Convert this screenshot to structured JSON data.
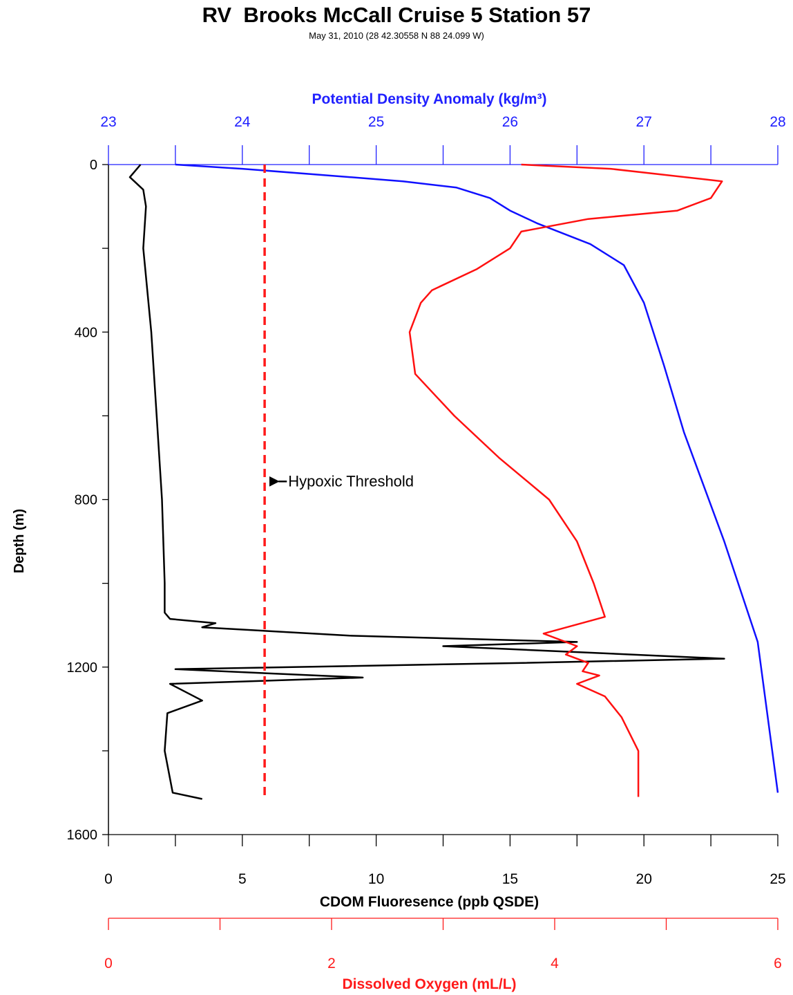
{
  "chart_data": {
    "type": "line",
    "title": "RV  Brooks McCall Cruise 5 Station 57",
    "subtitle": "May 31, 2010 (28 42.30558 N 88 24.099 W)",
    "y_axis": {
      "label": "Depth (m)",
      "range": [
        0,
        1600
      ],
      "inverted": true,
      "ticks": [
        0,
        400,
        800,
        1200,
        1600
      ]
    },
    "x_axes": [
      {
        "id": "density",
        "position": "top",
        "label": "Potential Density Anomaly (kg/m³)",
        "color": "#2020ff",
        "range": [
          23,
          28
        ],
        "ticks": [
          23,
          24,
          25,
          26,
          27,
          28
        ]
      },
      {
        "id": "cdom",
        "position": "bottom",
        "label": "CDOM Fluoresence (ppb QSDE)",
        "color": "#000000",
        "range": [
          0,
          25
        ],
        "ticks": [
          0,
          5,
          10,
          15,
          20,
          25
        ]
      },
      {
        "id": "oxygen",
        "position": "bottom-offset",
        "label": "Dissolved Oxygen (mL/L)",
        "color": "#ff1a1a",
        "range": [
          0,
          6
        ],
        "ticks": [
          0,
          2,
          4,
          6
        ]
      }
    ],
    "series": [
      {
        "axis": "density",
        "color": "#1010ff",
        "x": [
          23.5,
          24.0,
          24.6,
          25.2,
          25.6,
          25.85,
          26.0,
          26.2,
          26.6,
          26.85,
          27.0,
          27.15,
          27.3,
          27.6,
          27.85,
          28.0
        ],
        "y": [
          0,
          10,
          25,
          40,
          55,
          80,
          110,
          140,
          190,
          240,
          330,
          480,
          640,
          900,
          1140,
          1500
        ]
      },
      {
        "axis": "cdom",
        "color": "#000000",
        "x": [
          1.2,
          1.0,
          0.8,
          1.3,
          1.4,
          1.3,
          1.6,
          1.8,
          2.0,
          2.1,
          2.1,
          2.3,
          4.0,
          3.5,
          9.0,
          17.5,
          12.5,
          23.0,
          15.5,
          2.5,
          9.5,
          2.3,
          3.5,
          2.2,
          2.1,
          2.4,
          3.5
        ],
        "y": [
          0,
          15,
          30,
          60,
          100,
          200,
          400,
          600,
          800,
          1000,
          1070,
          1085,
          1095,
          1105,
          1125,
          1140,
          1150,
          1180,
          1190,
          1205,
          1225,
          1240,
          1280,
          1310,
          1400,
          1500,
          1515
        ]
      },
      {
        "axis": "oxygen",
        "color": "#ff1010",
        "x": [
          3.7,
          4.5,
          5.5,
          5.4,
          5.1,
          4.3,
          3.7,
          3.6,
          3.3,
          2.9,
          2.8,
          2.7,
          2.75,
          3.1,
          3.5,
          3.95,
          4.2,
          4.35,
          4.45,
          3.9,
          4.2,
          4.1,
          4.3,
          4.25,
          4.4,
          4.2,
          4.45,
          4.6,
          4.75,
          4.75
        ],
        "y": [
          0,
          10,
          40,
          80,
          110,
          130,
          160,
          200,
          250,
          300,
          330,
          400,
          500,
          600,
          700,
          800,
          900,
          1000,
          1080,
          1120,
          1150,
          1170,
          1190,
          1210,
          1220,
          1240,
          1270,
          1320,
          1400,
          1510
        ]
      },
      {
        "axis": "oxygen",
        "color": "#ff1a1a",
        "style": "dashed",
        "x": [
          1.4,
          1.4
        ],
        "y": [
          0,
          1510
        ]
      }
    ],
    "annotations": [
      {
        "text": "Hypoxic Threshold",
        "axis": "oxygen",
        "x": 1.5,
        "y": 760,
        "arrow": "left"
      }
    ]
  }
}
